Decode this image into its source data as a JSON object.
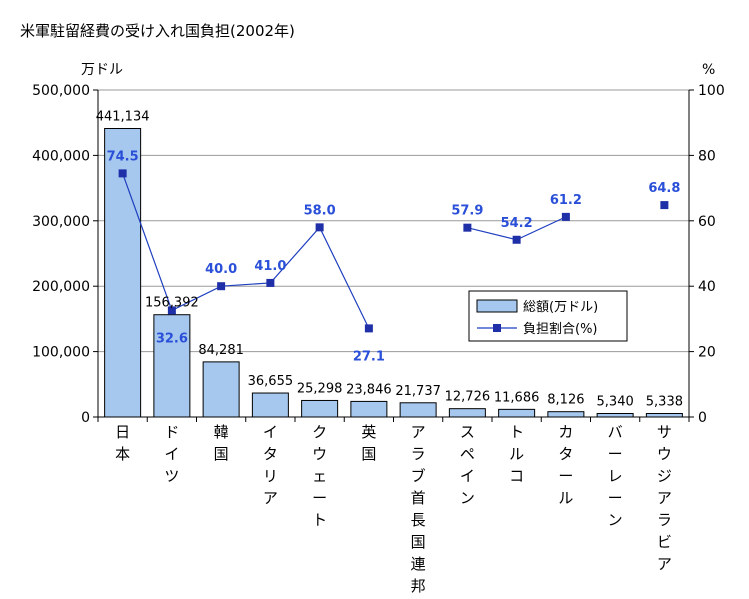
{
  "title": "米軍駐留経費の受け入れ国負担(2002年)",
  "chart_data": {
    "type": "bar",
    "title": "米軍駐留経費の受け入れ国負担(2002年)",
    "ylabel": "万ドル",
    "y2label": "%",
    "ylim": [
      0,
      500000
    ],
    "y2lim": [
      0,
      100
    ],
    "yticks": [
      "0",
      "100,000",
      "200,000",
      "300,000",
      "400,000",
      "500,000"
    ],
    "y2ticks": [
      "0",
      "20",
      "40",
      "60",
      "80",
      "100"
    ],
    "grid": true,
    "legend_position": "center-right",
    "categories": [
      "日本",
      "ドイツ",
      "韓国",
      "イタリア",
      "クウェート",
      "英国",
      "アラブ首長国連邦",
      "スペイン",
      "トルコ",
      "カタール",
      "バーレーン",
      "サウジアラビア"
    ],
    "series": [
      {
        "name": "総額(万ドル)",
        "type": "bar",
        "axis": "left",
        "values": [
          441134,
          156392,
          84281,
          36655,
          25298,
          23846,
          21737,
          12726,
          11686,
          8126,
          5340,
          5338
        ],
        "labels": [
          "441,134",
          "156,392",
          "84,281",
          "36,655",
          "25,298",
          "23,846",
          "21,737",
          "12,726",
          "11,686",
          "8,126",
          "5,340",
          "5,338"
        ],
        "color": "#a6c8ee"
      },
      {
        "name": "負担割合(%)",
        "type": "line",
        "axis": "right",
        "values": [
          74.5,
          32.6,
          40.0,
          41.0,
          58.0,
          27.1,
          null,
          57.9,
          54.2,
          61.2,
          null,
          64.8
        ],
        "labels": [
          "74.5",
          "32.6",
          "40.0",
          "41.0",
          "58.0",
          "27.1",
          null,
          "57.9",
          "54.2",
          "61.2",
          null,
          "64.8"
        ],
        "color": "#1f3fbf"
      }
    ]
  }
}
